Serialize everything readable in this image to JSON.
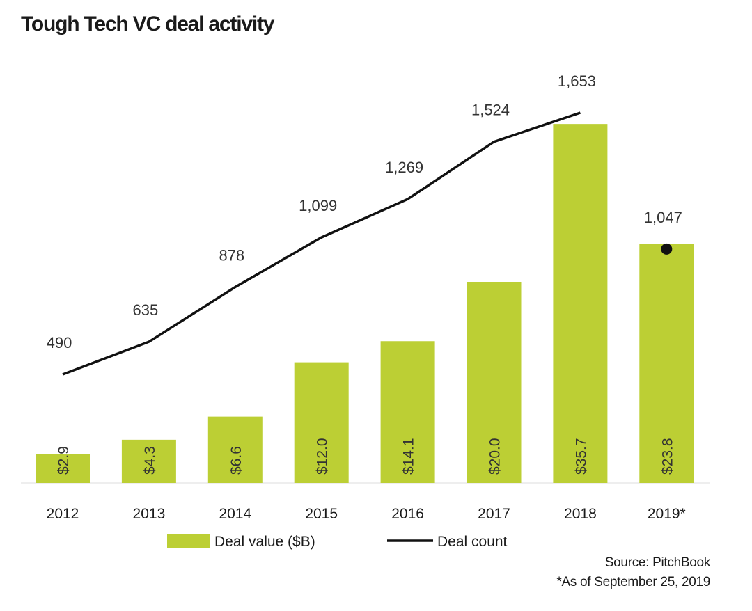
{
  "chart_data": {
    "type": "bar+line",
    "title": "Tough Tech VC deal activity",
    "categories": [
      "2012",
      "2013",
      "2014",
      "2015",
      "2016",
      "2017",
      "2018",
      "2019*"
    ],
    "series": [
      {
        "name": "Deal value ($B)",
        "type": "bar",
        "values": [
          2.9,
          4.3,
          6.6,
          12.0,
          14.1,
          20.0,
          35.7,
          23.8
        ],
        "labels": [
          "$2.9",
          "$4.3",
          "$6.6",
          "$12.0",
          "$14.1",
          "$20.0",
          "$35.7",
          "$23.8"
        ],
        "color": "#bccf34"
      },
      {
        "name": "Deal count",
        "type": "line",
        "values": [
          490,
          635,
          878,
          1099,
          1269,
          1524,
          1653,
          1047
        ],
        "labels": [
          "490",
          "635",
          "878",
          "1,099",
          "1,269",
          "1,524",
          "1,653",
          "1,047"
        ],
        "color": "#111111",
        "note": "2019* shown as a single point"
      }
    ],
    "legend": {
      "position": "bottom",
      "entries": [
        "Deal value ($B)",
        "Deal count"
      ]
    },
    "grid": false
  },
  "source": "Source: PitchBook",
  "footnote": "*As of September 25, 2019"
}
